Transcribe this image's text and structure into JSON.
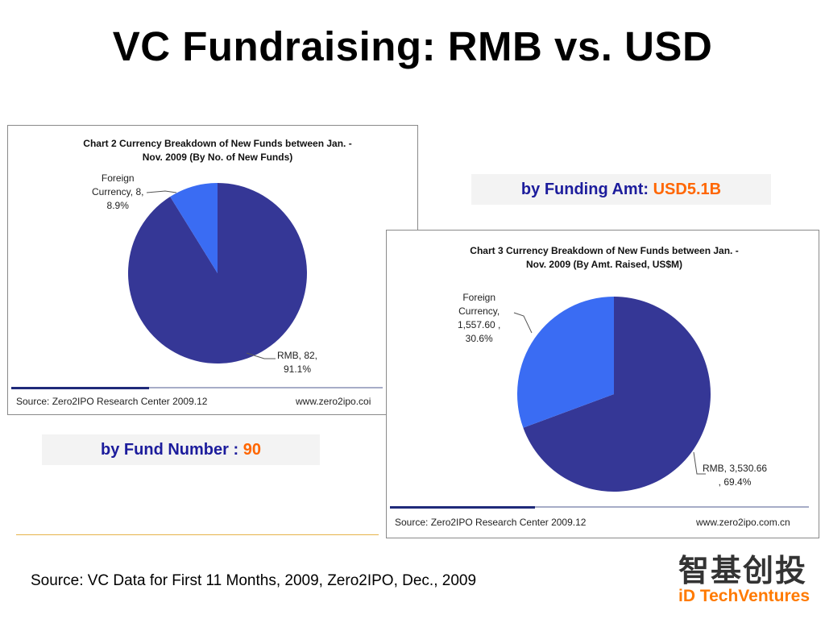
{
  "slide": {
    "title": "VC Fundraising: RMB vs. USD",
    "footer_source": "Source: VC Data for First 11 Months, 2009, Zero2IPO, Dec., 2009",
    "logo": {
      "cn": "智基创投",
      "en": "iD TechVentures"
    }
  },
  "callouts": {
    "amount": {
      "label": "by Funding Amt: ",
      "value": "USD5.1B"
    },
    "number": {
      "label": "by  Fund Number : ",
      "value": "90"
    }
  },
  "colors": {
    "rmb": "#353796",
    "foreign": "#3a6cf3",
    "accent": "#ff6600",
    "callout_text": "#1c1c9c"
  },
  "chart_data": [
    {
      "type": "pie",
      "title_line1": "Chart 2 Currency Breakdown of New Funds between Jan. -",
      "title_line2": "Nov. 2009 (By No. of New Funds)",
      "slices": [
        {
          "name": "RMB",
          "value": 82,
          "percent": 91.1,
          "label_line1": "RMB, 82,",
          "label_line2": "91.1%"
        },
        {
          "name": "Foreign Currency",
          "value": 8,
          "percent": 8.9,
          "label_line1": "Foreign",
          "label_line2": "Currency, 8,",
          "label_line3": "8.9%"
        }
      ],
      "source": "Source: Zero2IPO Research Center 2009.12",
      "url": "www.zero2ipo.coi"
    },
    {
      "type": "pie",
      "title_line1": "Chart 3 Currency Breakdown of New Funds between Jan. -",
      "title_line2": "Nov. 2009 (By Amt. Raised, US$M)",
      "slices": [
        {
          "name": "RMB",
          "value": 3530.66,
          "percent": 69.4,
          "label_line1": "RMB, 3,530.66",
          "label_line2": ", 69.4%"
        },
        {
          "name": "Foreign Currency",
          "value": 1557.6,
          "percent": 30.6,
          "label_line1": "Foreign",
          "label_line2": "Currency,",
          "label_line3": "1,557.60 ,",
          "label_line4": "30.6%"
        }
      ],
      "source": "Source: Zero2IPO Research Center 2009.12",
      "url": "www.zero2ipo.com.cn"
    }
  ]
}
